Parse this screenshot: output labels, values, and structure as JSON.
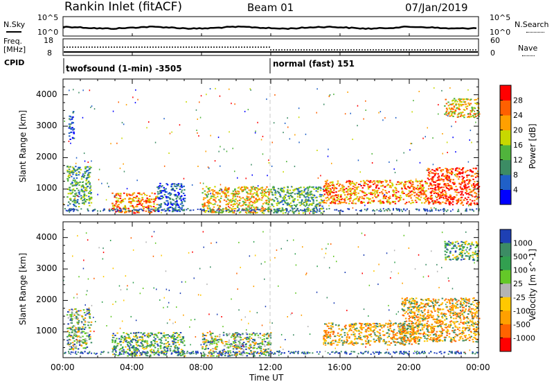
{
  "header": {
    "station": "Rankin Inlet (fitACF)",
    "beam": "Beam 01",
    "date": "07/Jan/2019"
  },
  "top_panels": {
    "nsky_label": "N.Sky",
    "nsky_ticks": [
      "10^5",
      "10^0"
    ],
    "nsearch_label": "N.Search",
    "nsearch_ticks": [
      "10^5",
      "10^0"
    ],
    "freq_label": "Freq.",
    "freq_unit": "[MHz]",
    "freq_ticks": [
      "18",
      "8"
    ],
    "nave_label": "Nave",
    "nave_ticks": [
      "60",
      "0"
    ],
    "cpid_label": "CPID",
    "cpid_segments": [
      "twofsound (1-min) -3505",
      "normal (fast) 151"
    ]
  },
  "chart_data": [
    {
      "type": "heatmap",
      "name": "power",
      "ylabel": "Slant Range [km]",
      "xlabel": "",
      "xlim": [
        "00:00",
        "00:00"
      ],
      "ylim": [
        180,
        4500
      ],
      "yticks": [
        "1000",
        "2000",
        "3000",
        "4000"
      ],
      "colorbar": {
        "label": "Power [dB]",
        "ticks": [
          "4",
          "8",
          "12",
          "16",
          "20",
          "24",
          "28"
        ],
        "colors": [
          "#0000ff",
          "#2060c8",
          "#3c8c64",
          "#50b43c",
          "#c8d800",
          "#ffa000",
          "#ff6000",
          "#ff0000"
        ]
      },
      "regions": [
        {
          "t": [
            0.2,
            1.6
          ],
          "r": [
            450,
            1750
          ],
          "level": "low-mid"
        },
        {
          "t": [
            0.3,
            0.6
          ],
          "r": [
            2600,
            3500
          ],
          "level": "low"
        },
        {
          "t": [
            2.8,
            5.4
          ],
          "r": [
            250,
            900
          ],
          "level": "high"
        },
        {
          "t": [
            5.4,
            7.0
          ],
          "r": [
            300,
            1200
          ],
          "level": "low"
        },
        {
          "t": [
            8.0,
            12.0
          ],
          "r": [
            250,
            1100
          ],
          "level": "mid-high"
        },
        {
          "t": [
            12.0,
            15.0
          ],
          "r": [
            250,
            1100
          ],
          "level": "low-mid"
        },
        {
          "t": [
            15.0,
            21.0
          ],
          "r": [
            550,
            1300
          ],
          "level": "high"
        },
        {
          "t": [
            21.0,
            24.0
          ],
          "r": [
            500,
            1700
          ],
          "level": "very-high"
        },
        {
          "t": [
            22.0,
            24.0
          ],
          "r": [
            3300,
            3900
          ],
          "level": "mid-high"
        }
      ]
    },
    {
      "type": "heatmap",
      "name": "velocity",
      "ylabel": "Slant Range [km]",
      "xlabel": "Time UT",
      "xticks": [
        "00:00",
        "04:00",
        "08:00",
        "12:00",
        "16:00",
        "20:00",
        "00:00"
      ],
      "ylim": [
        180,
        4500
      ],
      "yticks": [
        "1000",
        "2000",
        "3000",
        "4000"
      ],
      "colorbar": {
        "label": "Velocity [m s^-1]",
        "ticks": [
          "1000",
          "500",
          "100",
          "25",
          "-25",
          "-100",
          "-500",
          "-1000"
        ],
        "colors": [
          "#1e40b4",
          "#3c8c64",
          "#32a050",
          "#64c828",
          "#b4b4b4",
          "#ffc800",
          "#ffa000",
          "#ff6400",
          "#ff0000"
        ]
      },
      "regions": [
        {
          "t": [
            0.2,
            1.6
          ],
          "r": [
            450,
            1750
          ],
          "level": "mixed"
        },
        {
          "t": [
            2.8,
            7.0
          ],
          "r": [
            250,
            1000
          ],
          "level": "positive"
        },
        {
          "t": [
            8.0,
            12.0
          ],
          "r": [
            250,
            1000
          ],
          "level": "mixed"
        },
        {
          "t": [
            15.0,
            20.5
          ],
          "r": [
            600,
            1300
          ],
          "level": "negative"
        },
        {
          "t": [
            19.5,
            24.0
          ],
          "r": [
            700,
            2100
          ],
          "level": "negative"
        },
        {
          "t": [
            22.0,
            24.0
          ],
          "r": [
            3300,
            3900
          ],
          "level": "positive"
        }
      ]
    }
  ]
}
